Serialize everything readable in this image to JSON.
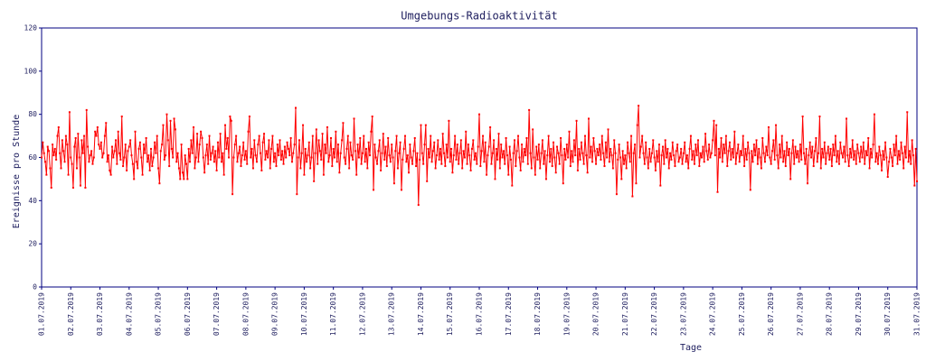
{
  "chart_data": {
    "type": "line",
    "title": "Umgebungs-Radioaktivität",
    "x_label": "Tage",
    "y_label": "Ereignisse pro Stunde",
    "ylim": [
      0,
      120
    ],
    "yticks": [
      0,
      20,
      40,
      60,
      80,
      100,
      120
    ],
    "grid": false,
    "series": [
      {
        "name": null,
        "color": "#ff0000",
        "values": [
          60,
          67,
          62,
          58,
          52,
          65,
          63,
          55,
          46,
          66,
          61,
          64,
          59,
          70,
          74,
          62,
          55,
          68,
          63,
          58,
          70,
          66,
          52,
          81,
          60,
          57,
          46,
          65,
          69,
          55,
          71,
          60,
          47,
          68,
          62,
          70,
          46,
          82,
          65,
          58,
          61,
          63,
          57,
          60,
          72,
          70,
          74,
          66,
          64,
          67,
          60,
          62,
          70,
          76,
          58,
          61,
          54,
          52,
          65,
          60,
          63,
          68,
          57,
          72,
          62,
          59,
          79,
          56,
          60,
          66,
          54,
          63,
          65,
          68,
          61,
          57,
          50,
          72,
          58,
          55,
          64,
          67,
          60,
          52,
          66,
          62,
          69,
          58,
          61,
          54,
          64,
          56,
          60,
          67,
          62,
          70,
          55,
          48,
          63,
          66,
          75,
          59,
          61,
          80,
          68,
          56,
          77,
          64,
          60,
          78,
          73,
          58,
          62,
          55,
          50,
          66,
          53,
          50,
          61,
          57,
          50,
          64,
          58,
          68,
          62,
          74,
          55,
          60,
          71,
          58,
          66,
          72,
          69,
          60,
          53,
          61,
          66,
          57,
          70,
          59,
          62,
          65,
          58,
          63,
          54,
          67,
          60,
          71,
          58,
          62,
          52,
          75,
          64,
          69,
          60,
          79,
          77,
          43,
          60,
          66,
          70,
          58,
          62,
          65,
          56,
          61,
          67,
          59,
          63,
          57,
          72,
          79,
          60,
          64,
          55,
          68,
          61,
          58,
          66,
          70,
          62,
          54,
          67,
          71,
          59,
          63,
          60,
          68,
          55,
          64,
          70,
          58,
          62,
          56,
          66,
          61,
          68,
          59,
          63,
          57,
          65,
          60,
          67,
          64,
          61,
          69,
          58,
          62,
          66,
          83,
          43,
          60,
          68,
          55,
          62,
          75,
          52,
          64,
          58,
          61,
          67,
          55,
          60,
          70,
          49,
          62,
          73,
          57,
          68,
          63,
          59,
          71,
          52,
          66,
          62,
          74,
          58,
          61,
          69,
          56,
          64,
          60,
          72,
          58,
          66,
          53,
          62,
          68,
          76,
          60,
          57,
          64,
          70,
          55,
          67,
          61,
          59,
          78,
          63,
          52,
          66,
          60,
          69,
          57,
          62,
          70,
          58,
          64,
          55,
          67,
          61,
          72,
          79,
          45,
          66,
          60,
          57,
          63,
          68,
          54,
          62,
          71,
          59,
          65,
          56,
          69,
          61,
          58,
          66,
          60,
          48,
          63,
          70,
          55,
          62,
          67,
          45,
          59,
          64,
          70,
          58,
          61,
          53,
          66,
          60,
          57,
          63,
          69,
          56,
          62,
          38,
          59,
          75,
          62,
          57,
          66,
          75,
          49,
          64,
          60,
          70,
          58,
          63,
          67,
          55,
          61,
          68,
          59,
          64,
          57,
          71,
          62,
          56,
          66,
          60,
          77,
          58,
          64,
          53,
          61,
          70,
          59,
          66,
          57,
          62,
          68,
          55,
          63,
          60,
          72,
          57,
          66,
          61,
          54,
          64,
          68,
          59,
          62,
          57,
          65,
          80,
          56,
          63,
          70,
          58,
          67,
          52,
          61,
          65,
          74,
          57,
          62,
          68,
          50,
          64,
          59,
          71,
          55,
          66,
          60,
          63,
          57,
          69,
          61,
          52,
          65,
          59,
          47,
          62,
          68,
          56,
          63,
          70,
          60,
          54,
          66,
          58,
          64,
          61,
          69,
          57,
          82,
          62,
          55,
          73,
          60,
          52,
          65,
          59,
          66,
          55,
          62,
          68,
          57,
          63,
          50,
          61,
          70,
          58,
          64,
          56,
          67,
          60,
          53,
          65,
          62,
          57,
          69,
          61,
          48,
          64,
          59,
          66,
          60,
          72,
          56,
          63,
          58,
          68,
          61,
          77,
          54,
          64,
          59,
          67,
          62,
          57,
          70,
          61,
          53,
          78,
          60,
          65,
          58,
          69,
          63,
          57,
          64,
          61,
          66,
          59,
          70,
          62,
          56,
          67,
          60,
          73,
          58,
          64,
          61,
          55,
          68,
          62,
          43,
          59,
          66,
          60,
          50,
          63,
          57,
          61,
          55,
          67,
          62,
          58,
          70,
          42,
          62,
          66,
          48,
          75,
          84,
          60,
          65,
          70,
          62,
          57,
          67,
          60,
          55,
          64,
          58,
          62,
          68,
          60,
          54,
          63,
          58,
          66,
          47,
          61,
          65,
          57,
          68,
          60,
          64,
          55,
          62,
          59,
          67,
          61,
          56,
          63,
          66,
          58,
          60,
          64,
          57,
          62,
          67,
          58,
          61,
          55,
          64,
          70,
          59,
          63,
          57,
          66,
          61,
          68,
          56,
          62,
          60,
          65,
          58,
          71,
          63,
          59,
          66,
          60,
          62,
          68,
          77,
          61,
          75,
          44,
          64,
          60,
          69,
          58,
          66,
          62,
          70,
          56,
          63,
          67,
          59,
          64,
          60,
          72,
          57,
          62,
          66,
          58,
          63,
          61,
          70,
          56,
          64,
          59,
          67,
          62,
          45,
          63,
          58,
          66,
          61,
          68,
          57,
          64,
          60,
          55,
          69,
          62,
          58,
          65,
          61,
          74,
          60,
          57,
          63,
          68,
          59,
          75,
          61,
          55,
          66,
          60,
          70,
          58,
          63,
          56,
          67,
          61,
          64,
          50,
          62,
          68,
          57,
          65,
          60,
          63,
          58,
          66,
          59,
          79,
          62,
          57,
          64,
          48,
          61,
          67,
          60,
          65,
          56,
          63,
          69,
          58,
          62,
          79,
          55,
          64,
          60,
          67,
          57,
          62,
          65,
          59,
          64,
          56,
          66,
          61,
          70,
          58,
          63,
          57,
          67,
          62,
          60,
          65,
          58,
          78,
          61,
          56,
          64,
          60,
          68,
          59,
          63,
          57,
          66,
          62,
          58,
          65,
          60,
          67,
          57,
          63,
          61,
          69,
          55,
          64,
          60,
          66,
          80,
          58,
          62,
          57,
          65,
          61,
          54,
          63,
          59,
          67,
          60,
          51,
          58,
          64,
          60,
          56,
          66,
          61,
          70,
          57,
          63,
          59,
          67,
          62,
          55,
          65,
          60,
          81,
          58,
          63,
          57,
          68,
          61,
          47,
          64,
          49
        ]
      }
    ],
    "categories": [
      "01.07.2019",
      null,
      null,
      null,
      null,
      null,
      null,
      null,
      null,
      null,
      null,
      null,
      null,
      null,
      null,
      null,
      null,
      null,
      null,
      null,
      null,
      null,
      null,
      null,
      "02.07.2019",
      null,
      null,
      null,
      null,
      null,
      null,
      null,
      null,
      null,
      null,
      null,
      null,
      null,
      null,
      null,
      null,
      null,
      null,
      null,
      null,
      null,
      null,
      null,
      "03.07.2019",
      null,
      null,
      null,
      null,
      null,
      null,
      null,
      null,
      null,
      null,
      null,
      null,
      null,
      null,
      null,
      null,
      null,
      null,
      null,
      null,
      null,
      null,
      null,
      "04.07.2019",
      null,
      null,
      null,
      null,
      null,
      null,
      null,
      null,
      null,
      null,
      null,
      null,
      null,
      null,
      null,
      null,
      null,
      null,
      null,
      null,
      null,
      null,
      null,
      "05.07.2019",
      null,
      null,
      null,
      null,
      null,
      null,
      null,
      null,
      null,
      null,
      null,
      null,
      null,
      null,
      null,
      null,
      null,
      null,
      null,
      null,
      null,
      null,
      null,
      "06.07.2019",
      null,
      null,
      null,
      null,
      null,
      null,
      null,
      null,
      null,
      null,
      null,
      null,
      null,
      null,
      null,
      null,
      null,
      null,
      null,
      null,
      null,
      null,
      null,
      "07.07.2019",
      null,
      null,
      null,
      null,
      null,
      null,
      null,
      null,
      null,
      null,
      null,
      null,
      null,
      null,
      null,
      null,
      null,
      null,
      null,
      null,
      null,
      null,
      null,
      "08.07.2019",
      null,
      null,
      null,
      null,
      null,
      null,
      null,
      null,
      null,
      null,
      null,
      null,
      null,
      null,
      null,
      null,
      null,
      null,
      null,
      null,
      null,
      null,
      null,
      "09.07.2019",
      null,
      null,
      null,
      null,
      null,
      null,
      null,
      null,
      null,
      null,
      null,
      null,
      null,
      null,
      null,
      null,
      null,
      null,
      null,
      null,
      null,
      null,
      null,
      "10.07.2019",
      null,
      null,
      null,
      null,
      null,
      null,
      null,
      null,
      null,
      null,
      null,
      null,
      null,
      null,
      null,
      null,
      null,
      null,
      null,
      null,
      null,
      null,
      null,
      "11.07.2019",
      null,
      null,
      null,
      null,
      null,
      null,
      null,
      null,
      null,
      null,
      null,
      null,
      null,
      null,
      null,
      null,
      null,
      null,
      null,
      null,
      null,
      null,
      null,
      "12.07.2019",
      null,
      null,
      null,
      null,
      null,
      null,
      null,
      null,
      null,
      null,
      null,
      null,
      null,
      null,
      null,
      null,
      null,
      null,
      null,
      null,
      null,
      null,
      null,
      "13.07.2019",
      null,
      null,
      null,
      null,
      null,
      null,
      null,
      null,
      null,
      null,
      null,
      null,
      null,
      null,
      null,
      null,
      null,
      null,
      null,
      null,
      null,
      null,
      null,
      "14.07.2019",
      null,
      null,
      null,
      null,
      null,
      null,
      null,
      null,
      null,
      null,
      null,
      null,
      null,
      null,
      null,
      null,
      null,
      null,
      null,
      null,
      null,
      null,
      null,
      "15.07.2019",
      null,
      null,
      null,
      null,
      null,
      null,
      null,
      null,
      null,
      null,
      null,
      null,
      null,
      null,
      null,
      null,
      null,
      null,
      null,
      null,
      null,
      null,
      null,
      "16.07.2019",
      null,
      null,
      null,
      null,
      null,
      null,
      null,
      null,
      null,
      null,
      null,
      null,
      null,
      null,
      null,
      null,
      null,
      null,
      null,
      null,
      null,
      null,
      null,
      "17.07.2019",
      null,
      null,
      null,
      null,
      null,
      null,
      null,
      null,
      null,
      null,
      null,
      null,
      null,
      null,
      null,
      null,
      null,
      null,
      null,
      null,
      null,
      null,
      null,
      "18.07.2019",
      null,
      null,
      null,
      null,
      null,
      null,
      null,
      null,
      null,
      null,
      null,
      null,
      null,
      null,
      null,
      null,
      null,
      null,
      null,
      null,
      null,
      null,
      null,
      "19.07.2019",
      null,
      null,
      null,
      null,
      null,
      null,
      null,
      null,
      null,
      null,
      null,
      null,
      null,
      null,
      null,
      null,
      null,
      null,
      null,
      null,
      null,
      null,
      null,
      "20.07.2019",
      null,
      null,
      null,
      null,
      null,
      null,
      null,
      null,
      null,
      null,
      null,
      null,
      null,
      null,
      null,
      null,
      null,
      null,
      null,
      null,
      null,
      null,
      null,
      "21.07.2019",
      null,
      null,
      null,
      null,
      null,
      null,
      null,
      null,
      null,
      null,
      null,
      null,
      null,
      null,
      null,
      null,
      null,
      null,
      null,
      null,
      null,
      null,
      null,
      "22.07.2019",
      null,
      null,
      null,
      null,
      null,
      null,
      null,
      null,
      null,
      null,
      null,
      null,
      null,
      null,
      null,
      null,
      null,
      null,
      null,
      null,
      null,
      null,
      null,
      "23.07.2019",
      null,
      null,
      null,
      null,
      null,
      null,
      null,
      null,
      null,
      null,
      null,
      null,
      null,
      null,
      null,
      null,
      null,
      null,
      null,
      null,
      null,
      null,
      null,
      "24.07.2019",
      null,
      null,
      null,
      null,
      null,
      null,
      null,
      null,
      null,
      null,
      null,
      null,
      null,
      null,
      null,
      null,
      null,
      null,
      null,
      null,
      null,
      null,
      null,
      "25.07.2019",
      null,
      null,
      null,
      null,
      null,
      null,
      null,
      null,
      null,
      null,
      null,
      null,
      null,
      null,
      null,
      null,
      null,
      null,
      null,
      null,
      null,
      null,
      null,
      "26.07.2019",
      null,
      null,
      null,
      null,
      null,
      null,
      null,
      null,
      null,
      null,
      null,
      null,
      null,
      null,
      null,
      null,
      null,
      null,
      null,
      null,
      null,
      null,
      null,
      "27.07.2019",
      null,
      null,
      null,
      null,
      null,
      null,
      null,
      null,
      null,
      null,
      null,
      null,
      null,
      null,
      null,
      null,
      null,
      null,
      null,
      null,
      null,
      null,
      null,
      "28.07.2019",
      null,
      null,
      null,
      null,
      null,
      null,
      null,
      null,
      null,
      null,
      null,
      null,
      null,
      null,
      null,
      null,
      null,
      null,
      null,
      null,
      null,
      null,
      null,
      "29.07.2019",
      null,
      null,
      null,
      null,
      null,
      null,
      null,
      null,
      null,
      null,
      null,
      null,
      null,
      null,
      null,
      null,
      null,
      null,
      null,
      null,
      null,
      null,
      null,
      "30.07.2019",
      null,
      null,
      null,
      null,
      null,
      null,
      null,
      null,
      null,
      null,
      null,
      null,
      null,
      null,
      null,
      null,
      null,
      null,
      null,
      null,
      null,
      null,
      null,
      "31.07.2019"
    ]
  }
}
